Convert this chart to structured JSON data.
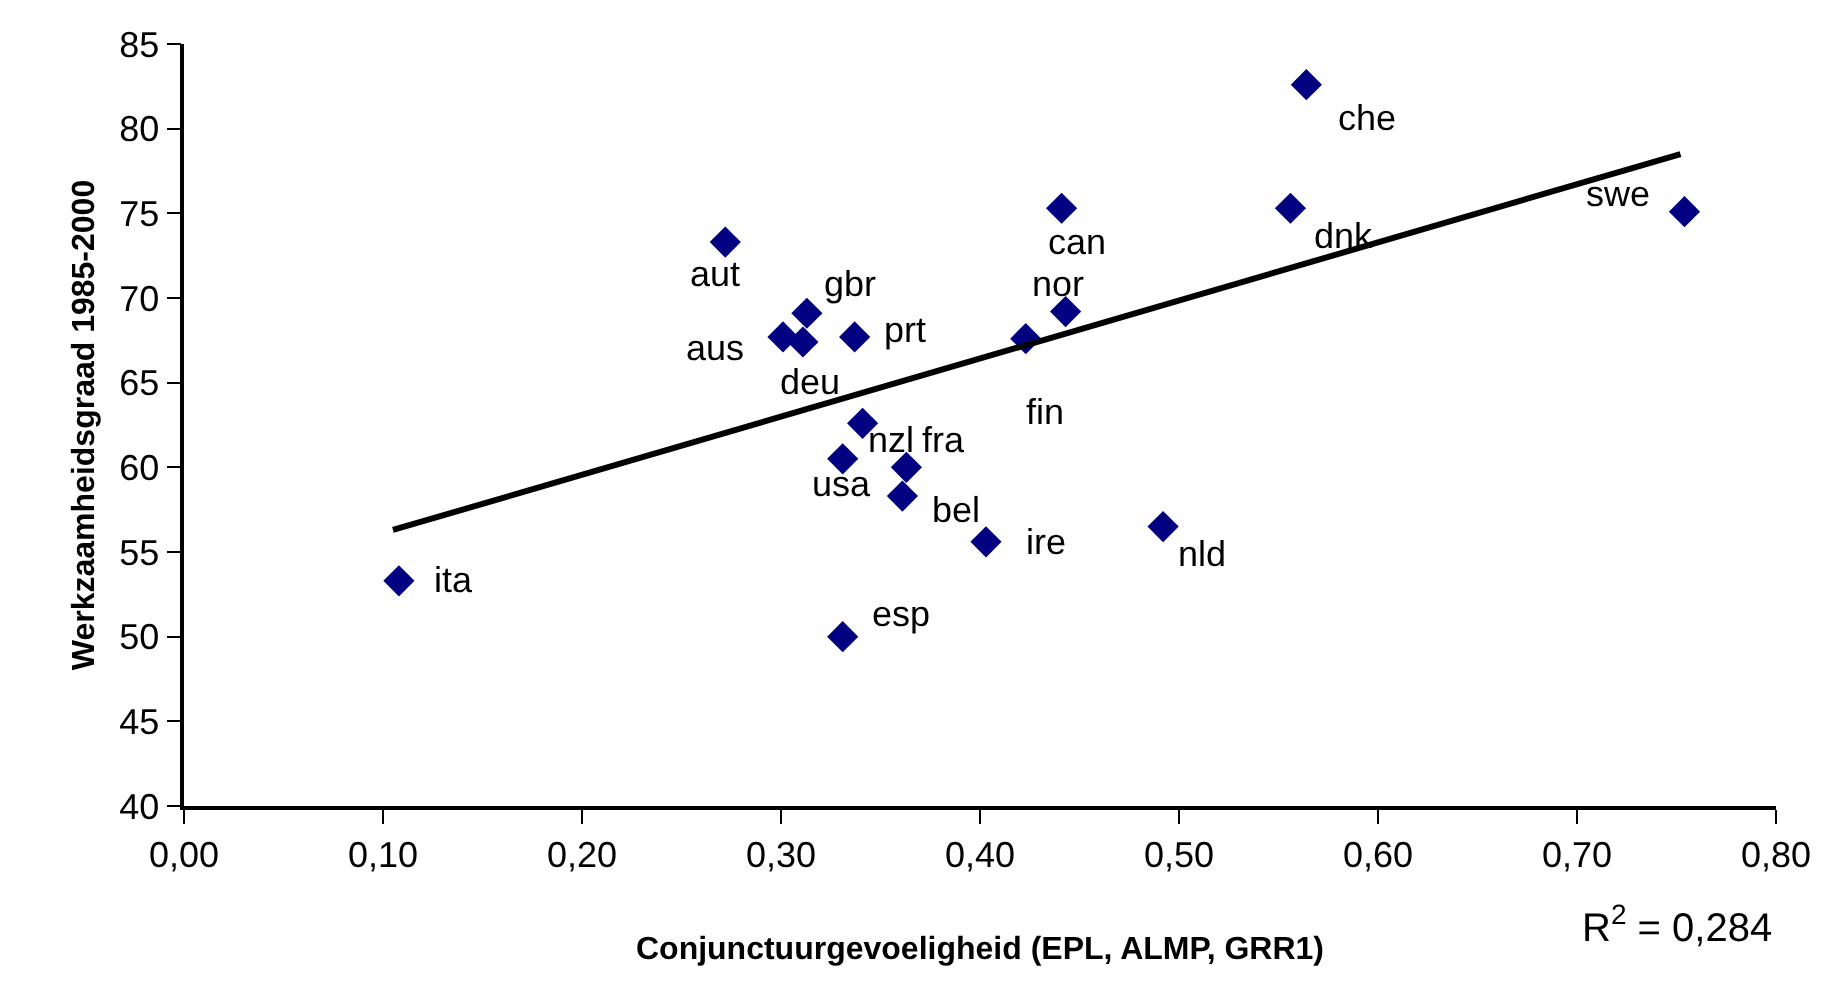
{
  "chart_data": {
    "type": "scatter",
    "xlabel": "Conjunctuurgevoeligheid (EPL, ALMP, GRR1)",
    "ylabel": "Werkzaamheidsgraad 1985-2000",
    "series": [
      {
        "color": "#000080",
        "marker": "diamond",
        "x": [
          0.108,
          0.272,
          0.313,
          0.301,
          0.311,
          0.337,
          0.341,
          0.331,
          0.363,
          0.361,
          0.331,
          0.403,
          0.423,
          0.443,
          0.441,
          0.492,
          0.556,
          0.564,
          0.754
        ],
        "values": [
          53.3,
          73.3,
          69.1,
          67.7,
          67.4,
          67.7,
          62.6,
          60.5,
          60.0,
          58.3,
          50.0,
          55.6,
          67.6,
          69.2,
          75.3,
          56.5,
          75.3,
          82.6,
          75.1
        ]
      },
      {
        "type": "line",
        "color": "#000000",
        "marker": "none",
        "line_style": "solid",
        "x": [
          0.105,
          0.752
        ],
        "values": [
          56.3,
          78.5
        ]
      }
    ],
    "annotations": [
      {
        "text": "ita",
        "x": 0.108,
        "y": 53.3
      },
      {
        "text": "aut",
        "x": 0.272,
        "y": 73.3
      },
      {
        "text": "gbr",
        "x": 0.313,
        "y": 69.1
      },
      {
        "text": "aus",
        "x": 0.301,
        "y": 67.7
      },
      {
        "text": "deu",
        "x": 0.311,
        "y": 67.4
      },
      {
        "text": "prt",
        "x": 0.337,
        "y": 67.7
      },
      {
        "text": "nzl",
        "x": 0.341,
        "y": 62.6
      },
      {
        "text": "usa",
        "x": 0.331,
        "y": 60.5
      },
      {
        "text": "fra",
        "x": 0.363,
        "y": 60.0
      },
      {
        "text": "bel",
        "x": 0.361,
        "y": 58.3
      },
      {
        "text": "esp",
        "x": 0.331,
        "y": 50.0
      },
      {
        "text": "ire",
        "x": 0.403,
        "y": 55.6
      },
      {
        "text": "fin",
        "x": 0.423,
        "y": 67.6
      },
      {
        "text": "nor",
        "x": 0.443,
        "y": 69.2
      },
      {
        "text": "can",
        "x": 0.441,
        "y": 75.3
      },
      {
        "text": "nld",
        "x": 0.492,
        "y": 56.5
      },
      {
        "text": "dnk",
        "x": 0.556,
        "y": 75.3
      },
      {
        "text": "che",
        "x": 0.564,
        "y": 82.6
      },
      {
        "text": "swe",
        "x": 0.754,
        "y": 75.1
      },
      "R$^{2}$ = 0,284"
    ],
    "xlim": [
      0,
      0.8
    ],
    "xticks": [
      {
        "value": 0,
        "label": "0,00"
      },
      {
        "value": 0.1,
        "label": "0,10"
      },
      {
        "value": 0.2,
        "label": "0,20"
      },
      {
        "value": 0.3,
        "label": "0,30"
      },
      {
        "value": 0.4,
        "label": "0,40"
      },
      {
        "value": 0.5,
        "label": "0,50"
      },
      {
        "value": 0.6,
        "label": "0,60"
      },
      {
        "value": 0.7,
        "label": "0,70"
      },
      {
        "value": 0.8,
        "label": "0,80"
      }
    ],
    "ylim": [
      40,
      85
    ],
    "yticks": [
      40,
      45,
      50,
      55,
      60,
      65,
      70,
      75,
      80,
      85
    ]
  }
}
